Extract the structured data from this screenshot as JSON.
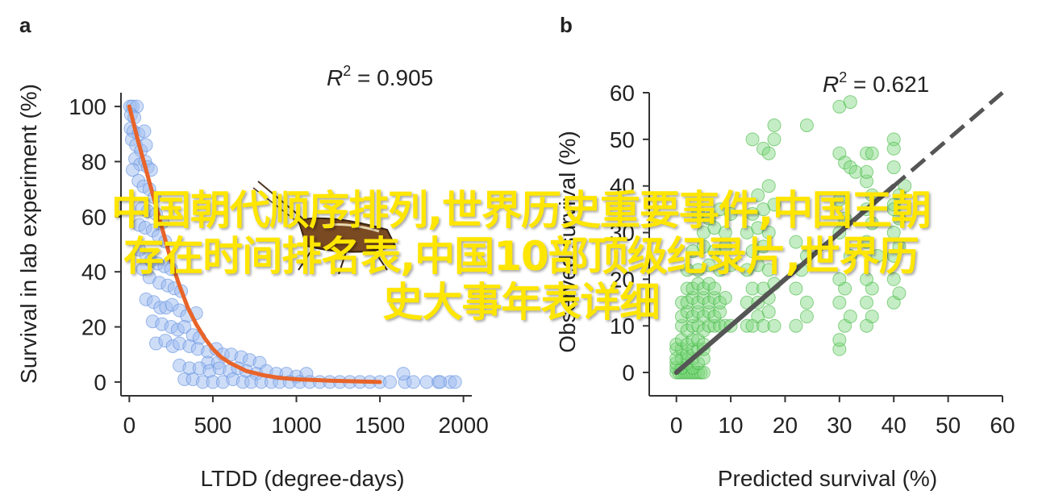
{
  "figure": {
    "overlay_caption": {
      "line1": "中国朝代顺序排列,世界历史重要事件,中国王朝",
      "line2": "存在时间排名表,中国10部顶级纪录片,世界历",
      "line3": "史大事年表详细"
    },
    "colors": {
      "panel_a_points": "#9dbcf0",
      "panel_a_point_edge": "#5f8ee0",
      "panel_a_curve": "#e8642a",
      "panel_b_points": "#7fd67f",
      "panel_b_point_edge": "#35b035",
      "panel_b_line": "#555555",
      "overlay_text": "#ffe600"
    }
  },
  "chart_data": [
    {
      "panel_label": "a",
      "type": "scatter",
      "xlabel": "LTDD (degree-days)",
      "ylabel": "Survival in lab experiment (%)",
      "annotation": "R² = 0.905",
      "annotation_parts": {
        "r": "R",
        "sup": "2",
        "rest": " = 0.905"
      },
      "xlim": [
        -50,
        2050
      ],
      "ylim": [
        -5,
        105
      ],
      "xticks": [
        0,
        500,
        1000,
        1500,
        2000
      ],
      "yticks": [
        0,
        20,
        40,
        60,
        80,
        100
      ],
      "points": [
        [
          5,
          100
        ],
        [
          20,
          100
        ],
        [
          45,
          100
        ],
        [
          10,
          97
        ],
        [
          30,
          96
        ],
        [
          8,
          92
        ],
        [
          25,
          91
        ],
        [
          55,
          90
        ],
        [
          90,
          91
        ],
        [
          15,
          88
        ],
        [
          40,
          86
        ],
        [
          70,
          84
        ],
        [
          100,
          86
        ],
        [
          35,
          81
        ],
        [
          65,
          79
        ],
        [
          95,
          80
        ],
        [
          110,
          78
        ],
        [
          130,
          77
        ],
        [
          20,
          77
        ],
        [
          55,
          73
        ],
        [
          85,
          71
        ],
        [
          120,
          70
        ],
        [
          150,
          67
        ],
        [
          75,
          63
        ],
        [
          110,
          62
        ],
        [
          160,
          61
        ],
        [
          200,
          58
        ],
        [
          60,
          57
        ],
        [
          95,
          56
        ],
        [
          140,
          55
        ],
        [
          175,
          53
        ],
        [
          215,
          51
        ],
        [
          60,
          48
        ],
        [
          100,
          46
        ],
        [
          130,
          44
        ],
        [
          170,
          43
        ],
        [
          210,
          42
        ],
        [
          250,
          41
        ],
        [
          80,
          41
        ],
        [
          120,
          38
        ],
        [
          180,
          36
        ],
        [
          230,
          35
        ],
        [
          270,
          34
        ],
        [
          310,
          33
        ],
        [
          100,
          30
        ],
        [
          145,
          29
        ],
        [
          185,
          27
        ],
        [
          220,
          27
        ],
        [
          255,
          28
        ],
        [
          300,
          26
        ],
        [
          345,
          24
        ],
        [
          400,
          25
        ],
        [
          140,
          22
        ],
        [
          195,
          21
        ],
        [
          250,
          20
        ],
        [
          290,
          19
        ],
        [
          330,
          20
        ],
        [
          380,
          17
        ],
        [
          420,
          16
        ],
        [
          160,
          14
        ],
        [
          215,
          15
        ],
        [
          260,
          13
        ],
        [
          300,
          14
        ],
        [
          360,
          13
        ],
        [
          410,
          12
        ],
        [
          470,
          11
        ],
        [
          520,
          12
        ],
        [
          560,
          10
        ],
        [
          610,
          10
        ],
        [
          670,
          9
        ],
        [
          720,
          8
        ],
        [
          780,
          7
        ],
        [
          470,
          7
        ],
        [
          530,
          7
        ],
        [
          300,
          6
        ],
        [
          360,
          5
        ],
        [
          420,
          5
        ],
        [
          480,
          4
        ],
        [
          540,
          5
        ],
        [
          600,
          4
        ],
        [
          650,
          5
        ],
        [
          700,
          4
        ],
        [
          760,
          3
        ],
        [
          820,
          4
        ],
        [
          880,
          3
        ],
        [
          940,
          3
        ],
        [
          1000,
          2
        ],
        [
          1060,
          3
        ],
        [
          330,
          1
        ],
        [
          380,
          1
        ],
        [
          440,
          0
        ],
        [
          500,
          0
        ],
        [
          560,
          0
        ],
        [
          620,
          1
        ],
        [
          680,
          0
        ],
        [
          730,
          0
        ],
        [
          790,
          0
        ],
        [
          850,
          0
        ],
        [
          900,
          0
        ],
        [
          960,
          0
        ],
        [
          1020,
          0
        ],
        [
          1080,
          0
        ],
        [
          1140,
          0
        ],
        [
          1200,
          0
        ],
        [
          1260,
          0
        ],
        [
          1320,
          0
        ],
        [
          1380,
          0
        ],
        [
          1440,
          0
        ],
        [
          1500,
          0
        ],
        [
          1560,
          0
        ],
        [
          1650,
          0
        ],
        [
          1700,
          0
        ],
        [
          1780,
          0
        ],
        [
          1850,
          0
        ],
        [
          1920,
          0
        ],
        [
          1950,
          0
        ],
        [
          1640,
          3
        ],
        [
          1860,
          0
        ]
      ],
      "fit_curve": [
        [
          0,
          100
        ],
        [
          50,
          88
        ],
        [
          100,
          77
        ],
        [
          150,
          66
        ],
        [
          200,
          55
        ],
        [
          250,
          44
        ],
        [
          300,
          35
        ],
        [
          350,
          27
        ],
        [
          400,
          21
        ],
        [
          450,
          16
        ],
        [
          500,
          12
        ],
        [
          550,
          9
        ],
        [
          600,
          7
        ],
        [
          700,
          4
        ],
        [
          800,
          2.5
        ],
        [
          900,
          1.5
        ],
        [
          1000,
          1
        ],
        [
          1200,
          0.5
        ],
        [
          1500,
          0
        ]
      ]
    },
    {
      "panel_label": "b",
      "type": "scatter",
      "xlabel": "Predicted survival (%)",
      "ylabel": "Observed survival (%)",
      "annotation": "R² = 0.621",
      "annotation_parts": {
        "r": "R",
        "sup": "2",
        "rest": " = 0.621"
      },
      "xlim": [
        -5,
        60
      ],
      "ylim": [
        -5,
        60
      ],
      "xticks": [
        0,
        10,
        20,
        30,
        40,
        50,
        60
      ],
      "yticks": [
        0,
        10,
        20,
        30,
        40,
        50,
        60
      ],
      "points": [
        [
          0,
          0
        ],
        [
          0.5,
          0
        ],
        [
          1,
          0
        ],
        [
          1.5,
          0
        ],
        [
          2,
          0
        ],
        [
          2.5,
          0
        ],
        [
          3,
          0
        ],
        [
          3.5,
          0
        ],
        [
          4,
          0
        ],
        [
          4.5,
          0
        ],
        [
          5,
          0
        ],
        [
          0,
          1
        ],
        [
          1,
          1
        ],
        [
          2,
          2
        ],
        [
          3,
          1
        ],
        [
          0,
          2
        ],
        [
          1,
          3
        ],
        [
          2,
          3
        ],
        [
          0,
          3
        ],
        [
          3,
          3
        ],
        [
          4,
          2
        ],
        [
          5,
          3
        ],
        [
          0,
          5
        ],
        [
          1,
          5
        ],
        [
          2,
          4
        ],
        [
          3,
          5
        ],
        [
          4,
          5
        ],
        [
          5,
          5
        ],
        [
          0,
          6
        ],
        [
          1,
          7
        ],
        [
          2,
          6
        ],
        [
          3,
          7
        ],
        [
          4,
          7
        ],
        [
          5,
          6
        ],
        [
          1,
          10
        ],
        [
          2,
          9
        ],
        [
          3,
          10
        ],
        [
          4,
          10
        ],
        [
          5,
          9
        ],
        [
          6,
          10
        ],
        [
          7,
          10
        ],
        [
          8,
          10
        ],
        [
          9,
          10
        ],
        [
          10,
          10
        ],
        [
          1,
          12
        ],
        [
          2,
          13
        ],
        [
          3,
          12
        ],
        [
          4,
          13
        ],
        [
          5,
          12
        ],
        [
          6,
          13
        ],
        [
          7,
          12
        ],
        [
          8,
          13
        ],
        [
          1,
          15
        ],
        [
          2,
          15
        ],
        [
          3,
          16
        ],
        [
          4,
          15
        ],
        [
          5,
          16
        ],
        [
          6,
          15
        ],
        [
          7,
          16
        ],
        [
          8,
          15
        ],
        [
          9,
          16
        ],
        [
          2,
          18
        ],
        [
          3,
          18
        ],
        [
          4,
          19
        ],
        [
          5,
          18
        ],
        [
          6,
          19
        ],
        [
          7,
          18
        ],
        [
          2,
          22
        ],
        [
          4,
          22
        ],
        [
          6,
          23
        ],
        [
          8,
          22
        ],
        [
          10,
          23
        ],
        [
          3,
          26
        ],
        [
          5,
          27
        ],
        [
          7,
          26
        ],
        [
          9,
          27
        ],
        [
          5,
          30
        ],
        [
          7,
          31
        ],
        [
          9,
          30
        ],
        [
          4,
          34
        ],
        [
          6,
          33
        ],
        [
          8,
          35
        ],
        [
          10,
          34
        ],
        [
          13,
          10
        ],
        [
          14,
          10
        ],
        [
          15,
          12
        ],
        [
          16,
          10
        ],
        [
          17,
          13
        ],
        [
          18,
          10
        ],
        [
          13,
          15
        ],
        [
          15,
          15
        ],
        [
          17,
          16
        ],
        [
          14,
          18
        ],
        [
          16,
          18
        ],
        [
          18,
          19
        ],
        [
          13,
          22
        ],
        [
          15,
          23
        ],
        [
          17,
          22
        ],
        [
          14,
          26
        ],
        [
          16,
          27
        ],
        [
          13,
          30
        ],
        [
          15,
          31
        ],
        [
          17,
          30
        ],
        [
          14,
          34
        ],
        [
          16,
          35
        ],
        [
          18,
          36
        ],
        [
          15,
          38
        ],
        [
          17,
          40
        ],
        [
          18,
          50
        ],
        [
          14,
          50
        ],
        [
          16,
          48
        ],
        [
          17,
          47
        ],
        [
          24,
          53
        ],
        [
          18,
          53
        ],
        [
          22,
          18
        ],
        [
          24,
          15
        ],
        [
          22,
          10
        ],
        [
          24,
          12
        ],
        [
          23,
          22
        ],
        [
          24,
          25
        ],
        [
          22,
          28
        ],
        [
          30,
          5
        ],
        [
          30,
          7
        ],
        [
          31,
          10
        ],
        [
          32,
          12
        ],
        [
          30,
          15
        ],
        [
          31,
          18
        ],
        [
          30,
          20
        ],
        [
          32,
          25
        ],
        [
          30,
          30
        ],
        [
          31,
          33
        ],
        [
          30,
          37
        ],
        [
          30,
          47
        ],
        [
          31,
          45
        ],
        [
          32,
          44
        ],
        [
          33,
          43
        ],
        [
          30,
          57
        ],
        [
          32,
          58
        ],
        [
          35,
          10
        ],
        [
          36,
          12
        ],
        [
          35,
          15
        ],
        [
          36,
          18
        ],
        [
          35,
          20
        ],
        [
          37,
          25
        ],
        [
          35,
          28
        ],
        [
          36,
          32
        ],
        [
          35,
          35
        ],
        [
          36,
          38
        ],
        [
          35,
          41
        ],
        [
          35,
          43
        ],
        [
          35,
          47
        ],
        [
          36,
          47
        ],
        [
          40,
          50
        ],
        [
          40,
          48
        ],
        [
          40,
          44
        ],
        [
          42,
          40
        ],
        [
          41,
          38
        ],
        [
          40,
          36
        ],
        [
          40,
          35
        ],
        [
          41,
          33
        ],
        [
          40,
          30
        ],
        [
          41,
          27
        ],
        [
          40,
          25
        ],
        [
          40,
          20
        ],
        [
          40,
          15
        ],
        [
          41,
          17
        ]
      ],
      "fit_line": {
        "x": [
          0,
          40
        ],
        "y": [
          0,
          40
        ],
        "style": "solid"
      },
      "one_to_one_line": {
        "x": [
          0,
          60
        ],
        "y": [
          0,
          60
        ],
        "style": "dashed"
      }
    }
  ]
}
